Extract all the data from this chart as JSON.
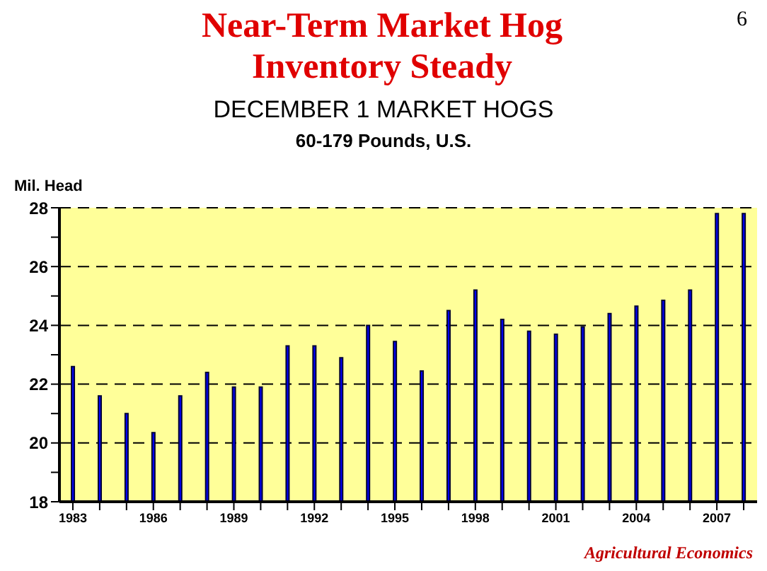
{
  "chart_data": {
    "type": "bar",
    "title": "Near-Term Market Hog Inventory Steady",
    "subtitle": "DECEMBER 1 MARKET HOGS",
    "ylabel": "Mil. Head",
    "annotations": [
      "60-179 Pounds, U.S.",
      "6",
      "Agricultural Economics"
    ],
    "categories": [
      "1983",
      null,
      null,
      "1986",
      null,
      null,
      "1989",
      null,
      null,
      "1992",
      null,
      null,
      "1995",
      null,
      null,
      "1998",
      null,
      null,
      "2001",
      null,
      null,
      "2004",
      null,
      null,
      "2007",
      null
    ],
    "values": [
      22.6,
      21.6,
      21.0,
      20.35,
      21.6,
      22.4,
      21.9,
      21.9,
      23.3,
      23.3,
      22.9,
      24.0,
      23.45,
      22.45,
      24.5,
      25.2,
      24.2,
      23.8,
      23.7,
      23.95,
      24.4,
      24.65,
      24.85,
      25.2,
      27.8,
      27.8
    ],
    "color": "#0000ff",
    "ylim": [
      18,
      28
    ],
    "yticks": [
      18,
      {
        "value": 19,
        "label": null
      },
      20,
      {
        "value": 21,
        "label": null
      },
      22,
      {
        "value": 23,
        "label": null
      },
      24,
      {
        "value": 25,
        "label": null
      },
      26,
      {
        "value": 27,
        "label": null
      },
      28
    ],
    "grid": "y",
    "legend": false
  }
}
